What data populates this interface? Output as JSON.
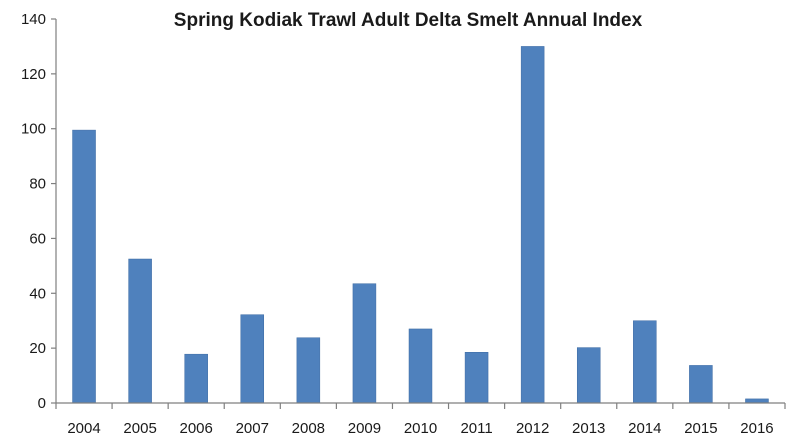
{
  "chart_data": {
    "type": "bar",
    "title": "Spring Kodiak Trawl Adult Delta Smelt Annual Index",
    "xlabel": "",
    "ylabel": "",
    "categories": [
      "2004",
      "2005",
      "2006",
      "2007",
      "2008",
      "2009",
      "2010",
      "2011",
      "2012",
      "2013",
      "2014",
      "2015",
      "2016"
    ],
    "values": [
      99.5,
      52.5,
      17.8,
      32.2,
      23.8,
      43.5,
      27.0,
      18.5,
      130.0,
      20.2,
      30.0,
      13.7,
      1.5
    ],
    "ylim": [
      0,
      140
    ],
    "yticks": [
      0,
      20,
      40,
      60,
      80,
      100,
      120,
      140
    ],
    "grid": false,
    "legend": "none",
    "bar_color": "#4f81bd"
  }
}
